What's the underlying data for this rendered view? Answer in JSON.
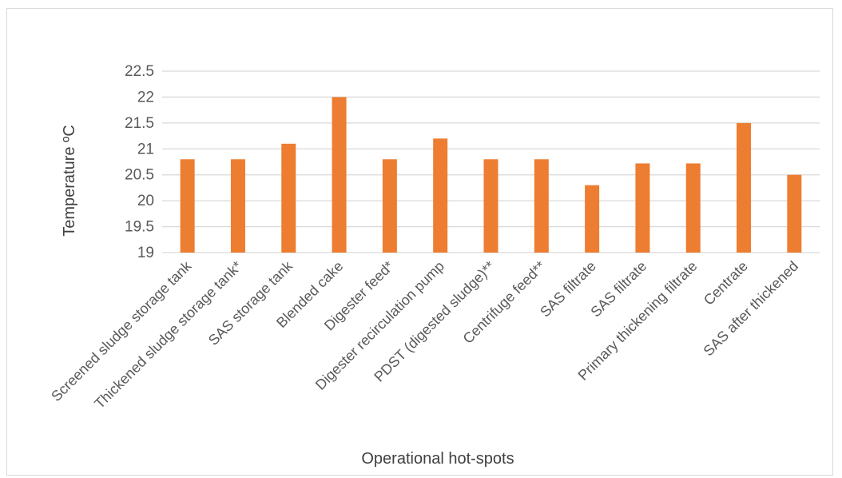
{
  "chart_data": {
    "type": "bar",
    "title": "",
    "xlabel": "Operational hot-spots",
    "ylabel": "Temperature ºC",
    "ylim": [
      19,
      22.5
    ],
    "yticks": [
      "19",
      "19.5",
      "20",
      "20.5",
      "21",
      "21.5",
      "22",
      "22.5"
    ],
    "ytick_values": [
      19,
      19.5,
      20,
      20.5,
      21,
      21.5,
      22,
      22.5
    ],
    "grid": true,
    "legend": "none",
    "bar_color": "#ED7D31",
    "grid_color": "#d9d9d9",
    "categories": [
      "Screened sludge storage tank",
      "Thickened sludge storage tank*",
      "SAS storage tank",
      "Blended cake",
      "Digester feed*",
      "Digester recirculation pump",
      "PDST (digested sludge)**",
      "Centrifuge feed**",
      "SAS filtrate",
      "SAS filtrate",
      "Primary thickening filtrate",
      "Centrate",
      "SAS after thickened"
    ],
    "values": [
      20.8,
      20.8,
      21.1,
      22.0,
      20.8,
      21.2,
      20.8,
      20.8,
      20.3,
      20.72,
      20.72,
      21.5,
      20.5
    ]
  }
}
